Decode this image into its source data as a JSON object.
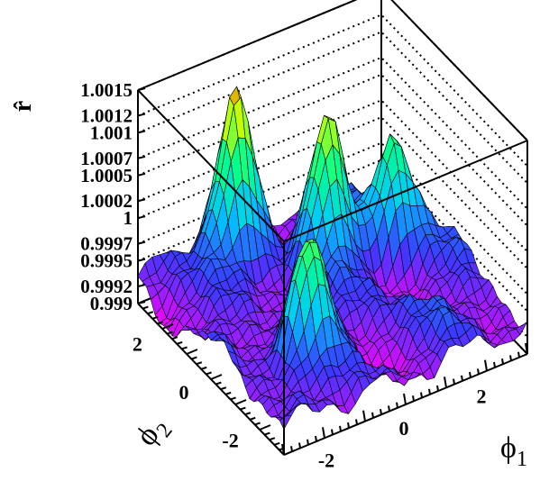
{
  "chart_data": {
    "type": "surface",
    "title": "",
    "xlabel": "ϕ",
    "xlabel_subscript": "1",
    "ylabel": "ϕ",
    "ylabel_subscript": "2",
    "zlabel": "r̂",
    "xlim": [
      -3.14,
      3.14
    ],
    "ylim": [
      -3.14,
      3.14
    ],
    "zlim": [
      0.999,
      1.0015
    ],
    "x_ticks": [
      "-2",
      "0",
      "2"
    ],
    "x_tick_values": [
      -2,
      0,
      2
    ],
    "y_ticks": [
      "-2",
      "0",
      "2"
    ],
    "y_tick_values": [
      -2,
      0,
      2
    ],
    "z_ticks": [
      "0.999",
      "0.9992",
      "0.9995",
      "0.9997",
      "1",
      "1.0002",
      "1.0005",
      "1.0007",
      "1.001",
      "1.0012",
      "1.0015"
    ],
    "z_tick_values": [
      0.999,
      0.9992,
      0.9995,
      0.9997,
      1.0,
      1.0002,
      1.0005,
      1.0007,
      1.001,
      1.0012,
      1.0015
    ],
    "grid": true,
    "colormap": [
      "#ff00ff",
      "#3a3aff",
      "#00c8ff",
      "#00ff90",
      "#c8ff00",
      "#ff5000"
    ],
    "peaks": [
      {
        "x": -1.0,
        "y": 2.5,
        "z": 1.0015
      },
      {
        "x": 0.6,
        "y": 1.2,
        "z": 1.0013
      },
      {
        "x": -1.5,
        "y": -1.4,
        "z": 1.0009
      },
      {
        "x": 2.0,
        "y": 0.8,
        "z": 1.0008
      }
    ]
  }
}
